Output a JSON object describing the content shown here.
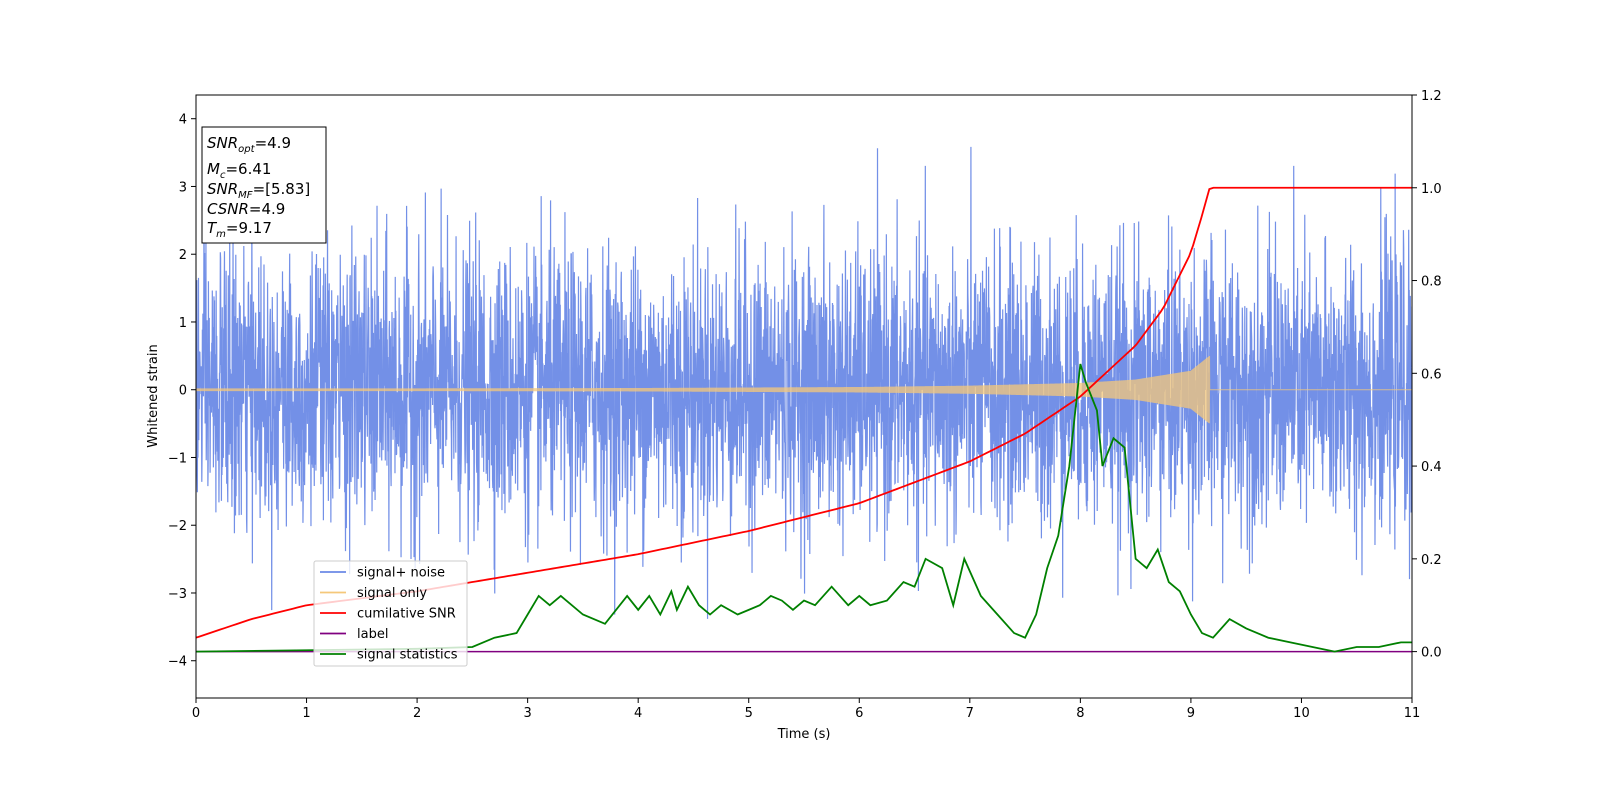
{
  "chart_data": {
    "type": "line",
    "xlabel": "Time (s)",
    "ylabel": "Whitened strain",
    "xlim": [
      0,
      11
    ],
    "ylim": [
      -4.55,
      4.35
    ],
    "y2lim": [
      -0.1,
      1.2
    ],
    "xticks": [
      "0",
      "1",
      "2",
      "3",
      "4",
      "5",
      "6",
      "7",
      "8",
      "9",
      "10",
      "11"
    ],
    "yticks": [
      "4",
      "3",
      "2",
      "1",
      "0",
      "−1",
      "−2",
      "−3",
      "−4"
    ],
    "y2ticks": [
      "1.2",
      "1.0",
      "0.8",
      "0.6",
      "0.4",
      "0.2",
      "0.0"
    ],
    "grid": false,
    "legend_position": "lower-left",
    "legend": [
      {
        "label": "signal+ noise",
        "color": "#6b8ae6"
      },
      {
        "label": "signal only",
        "color": "#f5c87a"
      },
      {
        "label": "cumilative SNR",
        "color": "#ff0000"
      },
      {
        "label": "label",
        "color": "#800080"
      },
      {
        "label": "signal statistics",
        "color": "#008000"
      }
    ],
    "annotation": {
      "lines": [
        {
          "base": "SNR",
          "sub": "opt",
          "rest": "=4.9"
        },
        {
          "base": "M",
          "sub": "c",
          "rest": "=6.41"
        },
        {
          "base": "SNR",
          "sub": "MF",
          "rest": "=[5.83]"
        },
        {
          "base": "CSNR",
          "sub": "",
          "rest": "=4.9"
        },
        {
          "base": "T",
          "sub": "m",
          "rest": "=9.17"
        }
      ]
    },
    "merger_time": 9.17,
    "series": [
      {
        "name": "signal+ noise",
        "axis": "left",
        "color": "#6b8ae6",
        "description_values": {
          "std": 1.0,
          "min": -4.1,
          "max": 3.95
        }
      },
      {
        "name": "signal only",
        "axis": "left",
        "color": "#f5c87a",
        "envelope": {
          "x": [
            0,
            2,
            4,
            6,
            7,
            8,
            8.5,
            9,
            9.17
          ],
          "amp": [
            0.02,
            0.02,
            0.025,
            0.04,
            0.06,
            0.1,
            0.15,
            0.28,
            0.5
          ]
        }
      },
      {
        "name": "cumilative SNR",
        "axis": "right",
        "color": "#ff0000",
        "x": [
          0,
          0.5,
          1,
          2,
          3,
          4,
          5,
          6,
          7,
          7.5,
          8,
          8.5,
          8.75,
          9,
          9.1,
          9.17,
          11
        ],
        "y": [
          0.03,
          0.07,
          0.1,
          0.13,
          0.17,
          0.21,
          0.26,
          0.32,
          0.41,
          0.47,
          0.55,
          0.66,
          0.74,
          0.86,
          0.94,
          1.0,
          1.0
        ]
      },
      {
        "name": "label",
        "axis": "right",
        "color": "#800080",
        "x": [
          0,
          11
        ],
        "y": [
          0.0,
          0.0
        ]
      },
      {
        "name": "signal statistics",
        "axis": "right",
        "color": "#008000",
        "x": [
          0,
          1,
          2,
          2.5,
          2.7,
          2.9,
          3.0,
          3.1,
          3.2,
          3.3,
          3.5,
          3.7,
          3.9,
          4.0,
          4.1,
          4.2,
          4.3,
          4.35,
          4.45,
          4.55,
          4.65,
          4.75,
          4.9,
          5.0,
          5.1,
          5.2,
          5.3,
          5.4,
          5.5,
          5.6,
          5.75,
          5.9,
          6.0,
          6.1,
          6.25,
          6.4,
          6.5,
          6.6,
          6.75,
          6.85,
          6.95,
          7.1,
          7.25,
          7.4,
          7.5,
          7.6,
          7.7,
          7.8,
          7.9,
          8.0,
          8.05,
          8.1,
          8.15,
          8.2,
          8.3,
          8.4,
          8.5,
          8.6,
          8.7,
          8.8,
          8.9,
          9.0,
          9.1,
          9.2,
          9.35,
          9.5,
          9.7,
          9.9,
          10.1,
          10.3,
          10.5,
          10.7,
          10.9,
          11.0
        ],
        "y": [
          0.0,
          0.003,
          0.006,
          0.01,
          0.03,
          0.04,
          0.08,
          0.12,
          0.1,
          0.12,
          0.08,
          0.06,
          0.12,
          0.09,
          0.12,
          0.08,
          0.13,
          0.09,
          0.14,
          0.1,
          0.08,
          0.1,
          0.08,
          0.09,
          0.1,
          0.12,
          0.11,
          0.09,
          0.11,
          0.1,
          0.14,
          0.1,
          0.12,
          0.1,
          0.11,
          0.15,
          0.14,
          0.2,
          0.18,
          0.1,
          0.2,
          0.12,
          0.08,
          0.04,
          0.03,
          0.08,
          0.18,
          0.25,
          0.4,
          0.62,
          0.58,
          0.55,
          0.52,
          0.4,
          0.46,
          0.44,
          0.2,
          0.18,
          0.22,
          0.15,
          0.13,
          0.08,
          0.04,
          0.03,
          0.07,
          0.05,
          0.03,
          0.02,
          0.01,
          0.0,
          0.01,
          0.01,
          0.02,
          0.02
        ]
      }
    ]
  }
}
